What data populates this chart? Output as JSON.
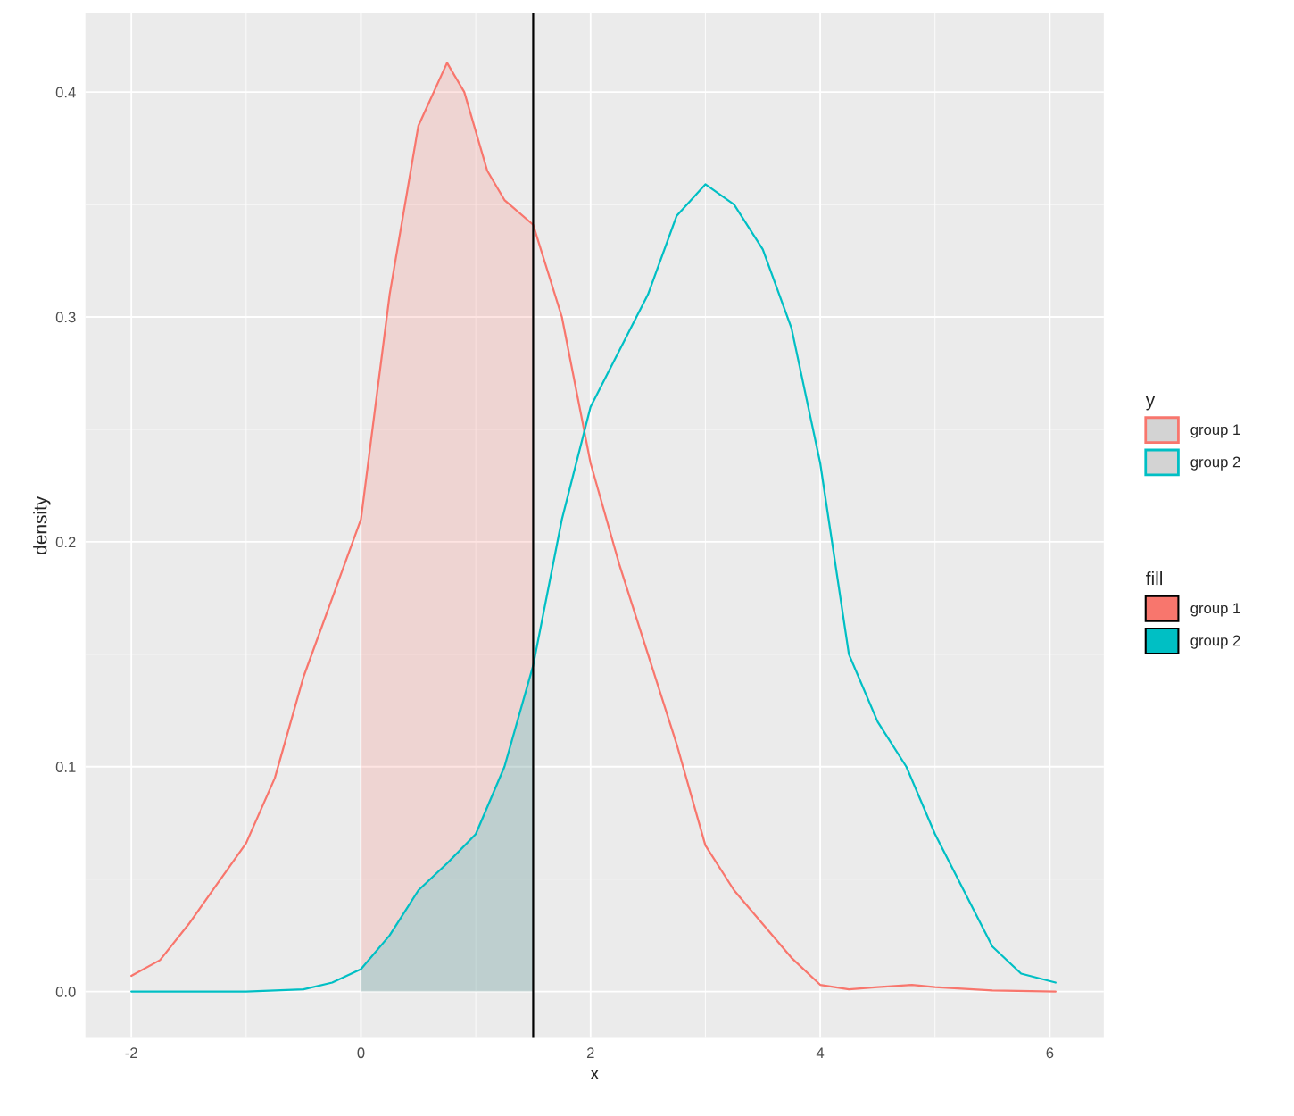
{
  "chart_data": {
    "type": "line",
    "xlabel": "x",
    "ylabel": "density",
    "legend_title": [
      "y",
      "fill"
    ],
    "xlim": [
      -2.4,
      6.47
    ],
    "ylim": [
      -0.0206,
      0.435
    ],
    "xticks": [
      -2,
      0,
      2,
      4,
      6
    ],
    "yticks": [
      {
        "value": 0,
        "label": "0.0"
      },
      0.1,
      0.2,
      0.3,
      0.4
    ],
    "grid": true,
    "legend": "right",
    "series": [
      {
        "name": "group 1",
        "color": "#f8766d",
        "x": [
          -2,
          -1.75,
          -1.5,
          -1.25,
          -1.0,
          -0.75,
          -0.5,
          -0.25,
          0,
          0.1,
          0.25,
          0.5,
          0.75,
          0.9,
          1.1,
          1.25,
          1.5,
          1.75,
          2.0,
          2.25,
          2.5,
          2.75,
          3.0,
          3.25,
          3.5,
          3.75,
          4.0,
          4.25,
          4.5,
          4.8,
          5.0,
          5.5,
          6.05
        ],
        "values": [
          0.007,
          0.014,
          0.03,
          0.048,
          0.066,
          0.095,
          0.14,
          0.175,
          0.21,
          0.25,
          0.31,
          0.385,
          0.413,
          0.4,
          0.365,
          0.352,
          0.341,
          0.3,
          0.235,
          0.19,
          0.15,
          0.11,
          0.065,
          0.045,
          0.03,
          0.015,
          0.003,
          0.001,
          0.002,
          0.003,
          0.002,
          0.0005,
          0.0
        ]
      },
      {
        "name": "group 2",
        "color": "#00bfc4",
        "x": [
          -2,
          -1,
          -0.5,
          -0.25,
          0,
          0.25,
          0.5,
          0.75,
          1.0,
          1.25,
          1.5,
          1.75,
          2.0,
          2.25,
          2.5,
          2.75,
          3.0,
          3.25,
          3.5,
          3.75,
          4.0,
          4.25,
          4.5,
          4.75,
          5.0,
          5.25,
          5.5,
          5.75,
          6.05
        ],
        "values": [
          0,
          0,
          0.001,
          0.004,
          0.01,
          0.025,
          0.045,
          0.057,
          0.07,
          0.1,
          0.145,
          0.21,
          0.26,
          0.285,
          0.31,
          0.345,
          0.359,
          0.35,
          0.33,
          0.295,
          0.235,
          0.15,
          0.12,
          0.1,
          0.07,
          0.045,
          0.02,
          0.008,
          0.004
        ]
      },
      {
        "name": "group 1",
        "type": "area",
        "color": "#f8766d",
        "x": [
          0,
          0.1,
          0.25,
          0.5,
          0.75,
          0.9,
          1.1,
          1.25,
          1.5
        ],
        "values": [
          0.21,
          0.25,
          0.31,
          0.385,
          0.413,
          0.4,
          0.365,
          0.352,
          0.341
        ]
      },
      {
        "name": "group 2",
        "type": "area",
        "color": "#00bfc4",
        "x": [
          0,
          0.25,
          0.5,
          0.75,
          1.0,
          1.25,
          1.5
        ],
        "values": [
          0.01,
          0.025,
          0.045,
          0.057,
          0.07,
          0.1,
          0.145
        ]
      }
    ],
    "ref_lines": [
      {
        "axis": "x",
        "value": 1.5,
        "color": "#000000"
      }
    ]
  }
}
